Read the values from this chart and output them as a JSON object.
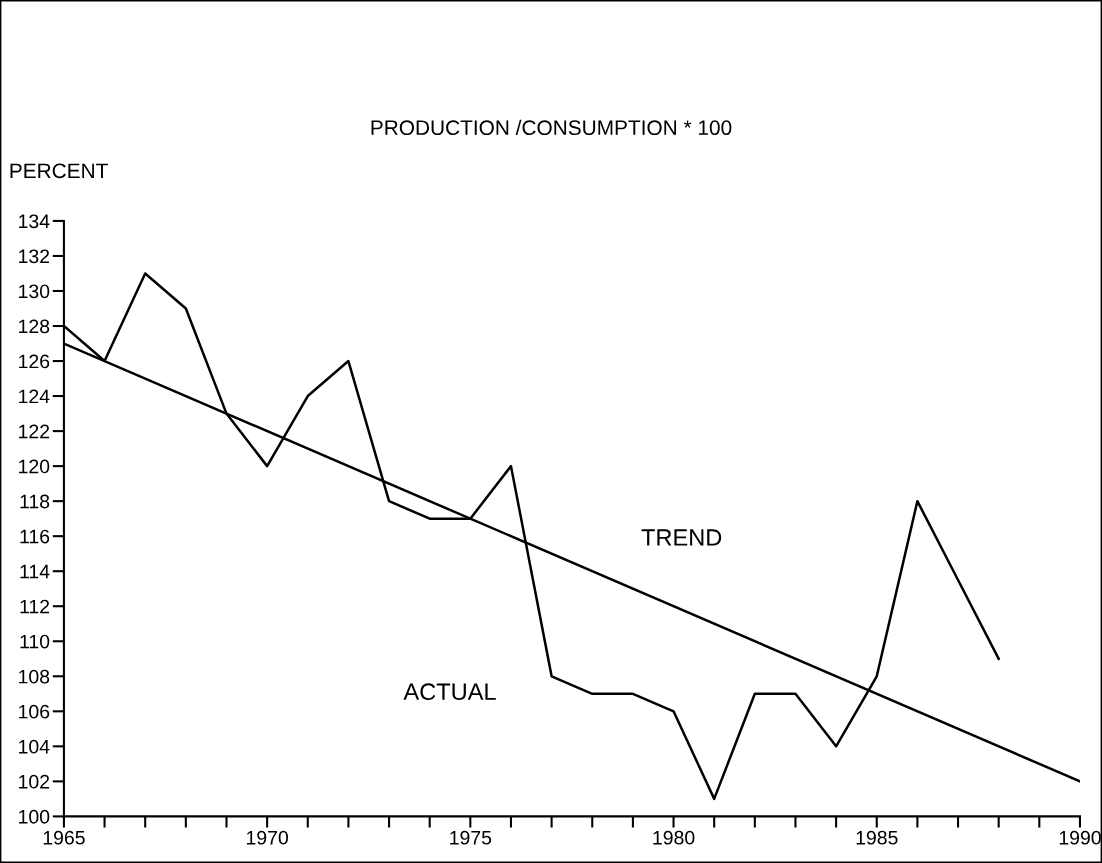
{
  "chart_data": {
    "type": "line",
    "title": "PRODUCTION /CONSUMPTION * 100",
    "ylabel": "PERCENT",
    "x": [
      1965,
      1966,
      1967,
      1968,
      1969,
      1970,
      1971,
      1972,
      1973,
      1974,
      1975,
      1976,
      1977,
      1978,
      1979,
      1980,
      1981,
      1982,
      1983,
      1984,
      1985,
      1986,
      1987,
      1988
    ],
    "series": [
      {
        "name": "ACTUAL",
        "color": "#000000",
        "values": [
          128,
          126,
          131,
          129,
          123,
          120,
          124,
          126,
          118,
          117,
          117,
          120,
          108,
          107,
          107,
          106,
          101,
          107,
          107,
          104,
          108,
          118,
          113.5,
          109
        ]
      },
      {
        "name": "TREND",
        "color": "#000000",
        "x": [
          1965,
          1990
        ],
        "values": [
          127,
          102
        ]
      }
    ],
    "xlim": [
      1965,
      1990
    ],
    "xticks": [
      {
        "value": 1965,
        "label": "1965"
      },
      {
        "value": 1966,
        "label": null
      },
      {
        "value": 1967,
        "label": null
      },
      {
        "value": 1968,
        "label": null
      },
      {
        "value": 1969,
        "label": null
      },
      {
        "value": 1970,
        "label": "1970"
      },
      {
        "value": 1971,
        "label": null
      },
      {
        "value": 1972,
        "label": null
      },
      {
        "value": 1973,
        "label": null
      },
      {
        "value": 1974,
        "label": null
      },
      {
        "value": 1975,
        "label": "1975"
      },
      {
        "value": 1976,
        "label": null
      },
      {
        "value": 1977,
        "label": null
      },
      {
        "value": 1978,
        "label": null
      },
      {
        "value": 1979,
        "label": null
      },
      {
        "value": 1980,
        "label": "1980"
      },
      {
        "value": 1981,
        "label": null
      },
      {
        "value": 1982,
        "label": null
      },
      {
        "value": 1983,
        "label": null
      },
      {
        "value": 1984,
        "label": null
      },
      {
        "value": 1985,
        "label": "1985"
      },
      {
        "value": 1986,
        "label": null
      },
      {
        "value": 1987,
        "label": null
      },
      {
        "value": 1988,
        "label": null
      },
      {
        "value": 1989,
        "label": null
      },
      {
        "value": 1990,
        "label": "1990"
      }
    ],
    "ylim": [
      100,
      134
    ],
    "yticks": [
      100,
      102,
      104,
      106,
      108,
      110,
      112,
      114,
      116,
      118,
      120,
      122,
      124,
      126,
      128,
      130,
      132,
      134
    ],
    "grid": false,
    "legend": false,
    "marker": "none",
    "line_style": "solid"
  }
}
